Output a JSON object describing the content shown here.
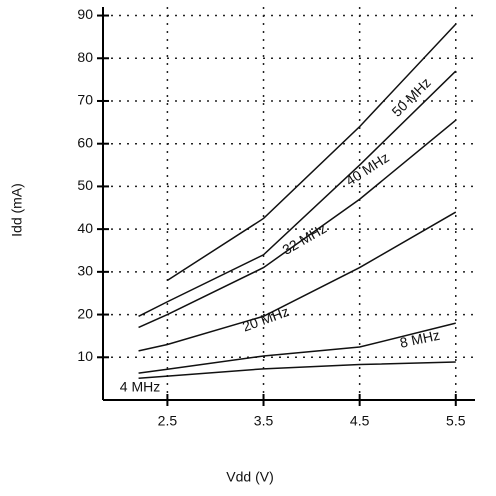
{
  "chart_data": {
    "type": "line",
    "x_label": "Vdd (V)",
    "y_label": "Idd (mA)",
    "x": [
      2.2,
      2.5,
      3.5,
      4.5,
      5.5
    ],
    "series": [
      {
        "name": "50 MHz",
        "color": "#111111",
        "values": [
          null,
          28,
          42.5,
          64,
          88
        ]
      },
      {
        "name": "40 MHz",
        "color": "#111111",
        "values": [
          19.6,
          23,
          34,
          55,
          77
        ]
      },
      {
        "name": "32 MHz",
        "color": "#111111",
        "values": [
          17,
          20,
          31,
          47,
          65.5
        ]
      },
      {
        "name": "20 MHz",
        "color": "#111111",
        "values": [
          11.5,
          13,
          19.6,
          31,
          44
        ]
      },
      {
        "name": "8 MHz",
        "color": "#111111",
        "values": [
          6.3,
          7.2,
          10.3,
          12.4,
          18
        ]
      },
      {
        "name": "4 MHz",
        "color": "#111111",
        "values": [
          5.1,
          5.6,
          7.3,
          8.3,
          8.9
        ]
      }
    ],
    "xlim": [
      1.83,
      5.7
    ],
    "xticks": [
      2.5,
      3.5,
      4.5,
      5.5
    ],
    "ylim": [
      0,
      92
    ],
    "yticks": [
      10,
      20,
      30,
      40,
      50,
      60,
      70,
      80,
      90
    ],
    "grid": true
  }
}
